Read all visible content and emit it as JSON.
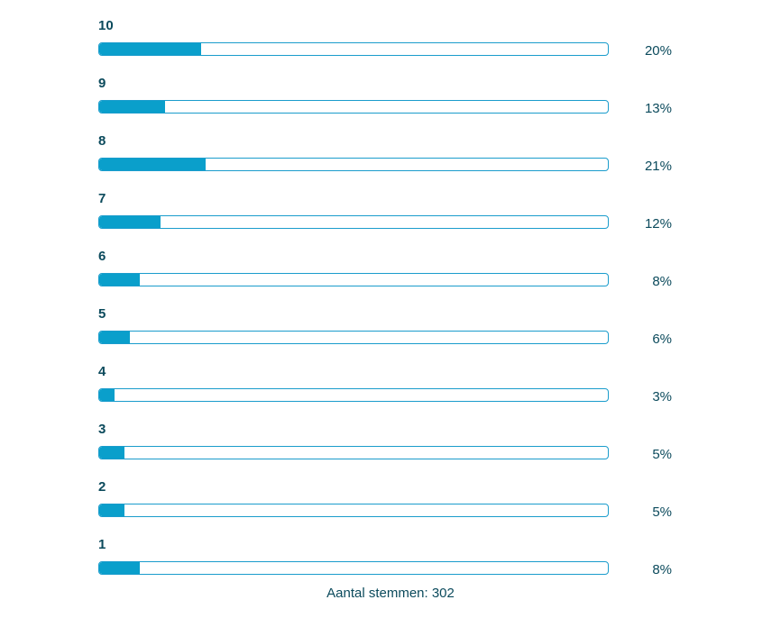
{
  "chart_data": {
    "type": "bar",
    "orientation": "horizontal",
    "categories": [
      "10",
      "9",
      "8",
      "7",
      "6",
      "5",
      "4",
      "3",
      "2",
      "1"
    ],
    "values": [
      20,
      13,
      21,
      12,
      8,
      6,
      3,
      5,
      5,
      8
    ],
    "value_labels": [
      "20%",
      "13%",
      "21%",
      "12%",
      "8%",
      "6%",
      "3%",
      "5%",
      "5%",
      "8%"
    ],
    "xlim": [
      0,
      100
    ],
    "title": "",
    "xlabel": "",
    "ylabel": "",
    "grid": false,
    "legend": "none",
    "colors": {
      "fill": "#0a9fcb",
      "track_border": "#1a9ccc",
      "text": "#0b4a5c"
    }
  },
  "footer": {
    "text": "Aantal stemmen: 302"
  }
}
